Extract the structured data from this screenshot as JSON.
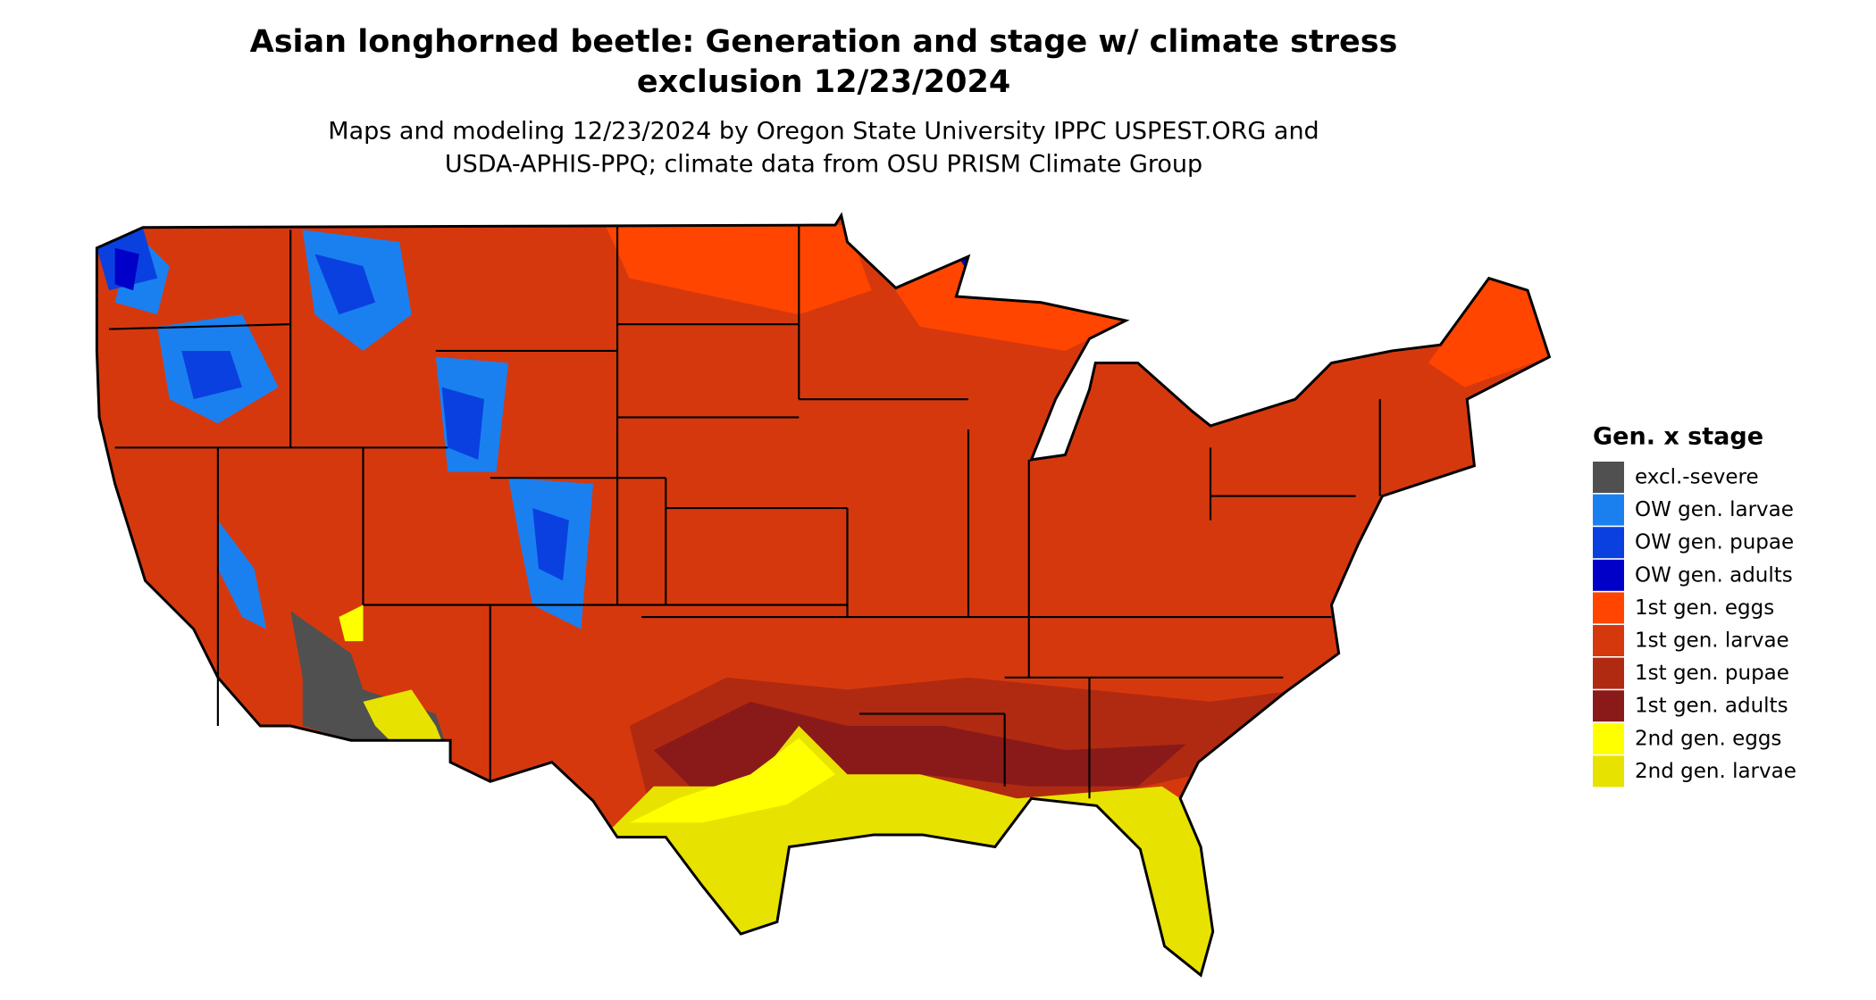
{
  "header": {
    "title_line1": "Asian longhorned beetle: Generation and stage w/ climate stress",
    "title_line2": "exclusion 12/23/2024",
    "subtitle_line1": "Maps and modeling 12/23/2024 by Oregon State University IPPC USPEST.ORG and",
    "subtitle_line2": "USDA-APHIS-PPQ; climate data from OSU PRISM Climate Group"
  },
  "legend": {
    "title": "Gen. x stage",
    "items": [
      {
        "label": "excl.-severe",
        "color": "#505050"
      },
      {
        "label": "OW gen. larvae",
        "color": "#1a80f0"
      },
      {
        "label": "OW gen. pupae",
        "color": "#0a40e0"
      },
      {
        "label": "OW gen. adults",
        "color": "#0000c8"
      },
      {
        "label": "1st gen. eggs",
        "color": "#ff4500"
      },
      {
        "label": "1st gen. larvae",
        "color": "#d6380e"
      },
      {
        "label": "1st gen. pupae",
        "color": "#b02a12"
      },
      {
        "label": "1st gen. adults",
        "color": "#8a1a1a"
      },
      {
        "label": "2nd gen. eggs",
        "color": "#ffff00"
      },
      {
        "label": "2nd gen. larvae",
        "color": "#e8e200"
      }
    ]
  }
}
